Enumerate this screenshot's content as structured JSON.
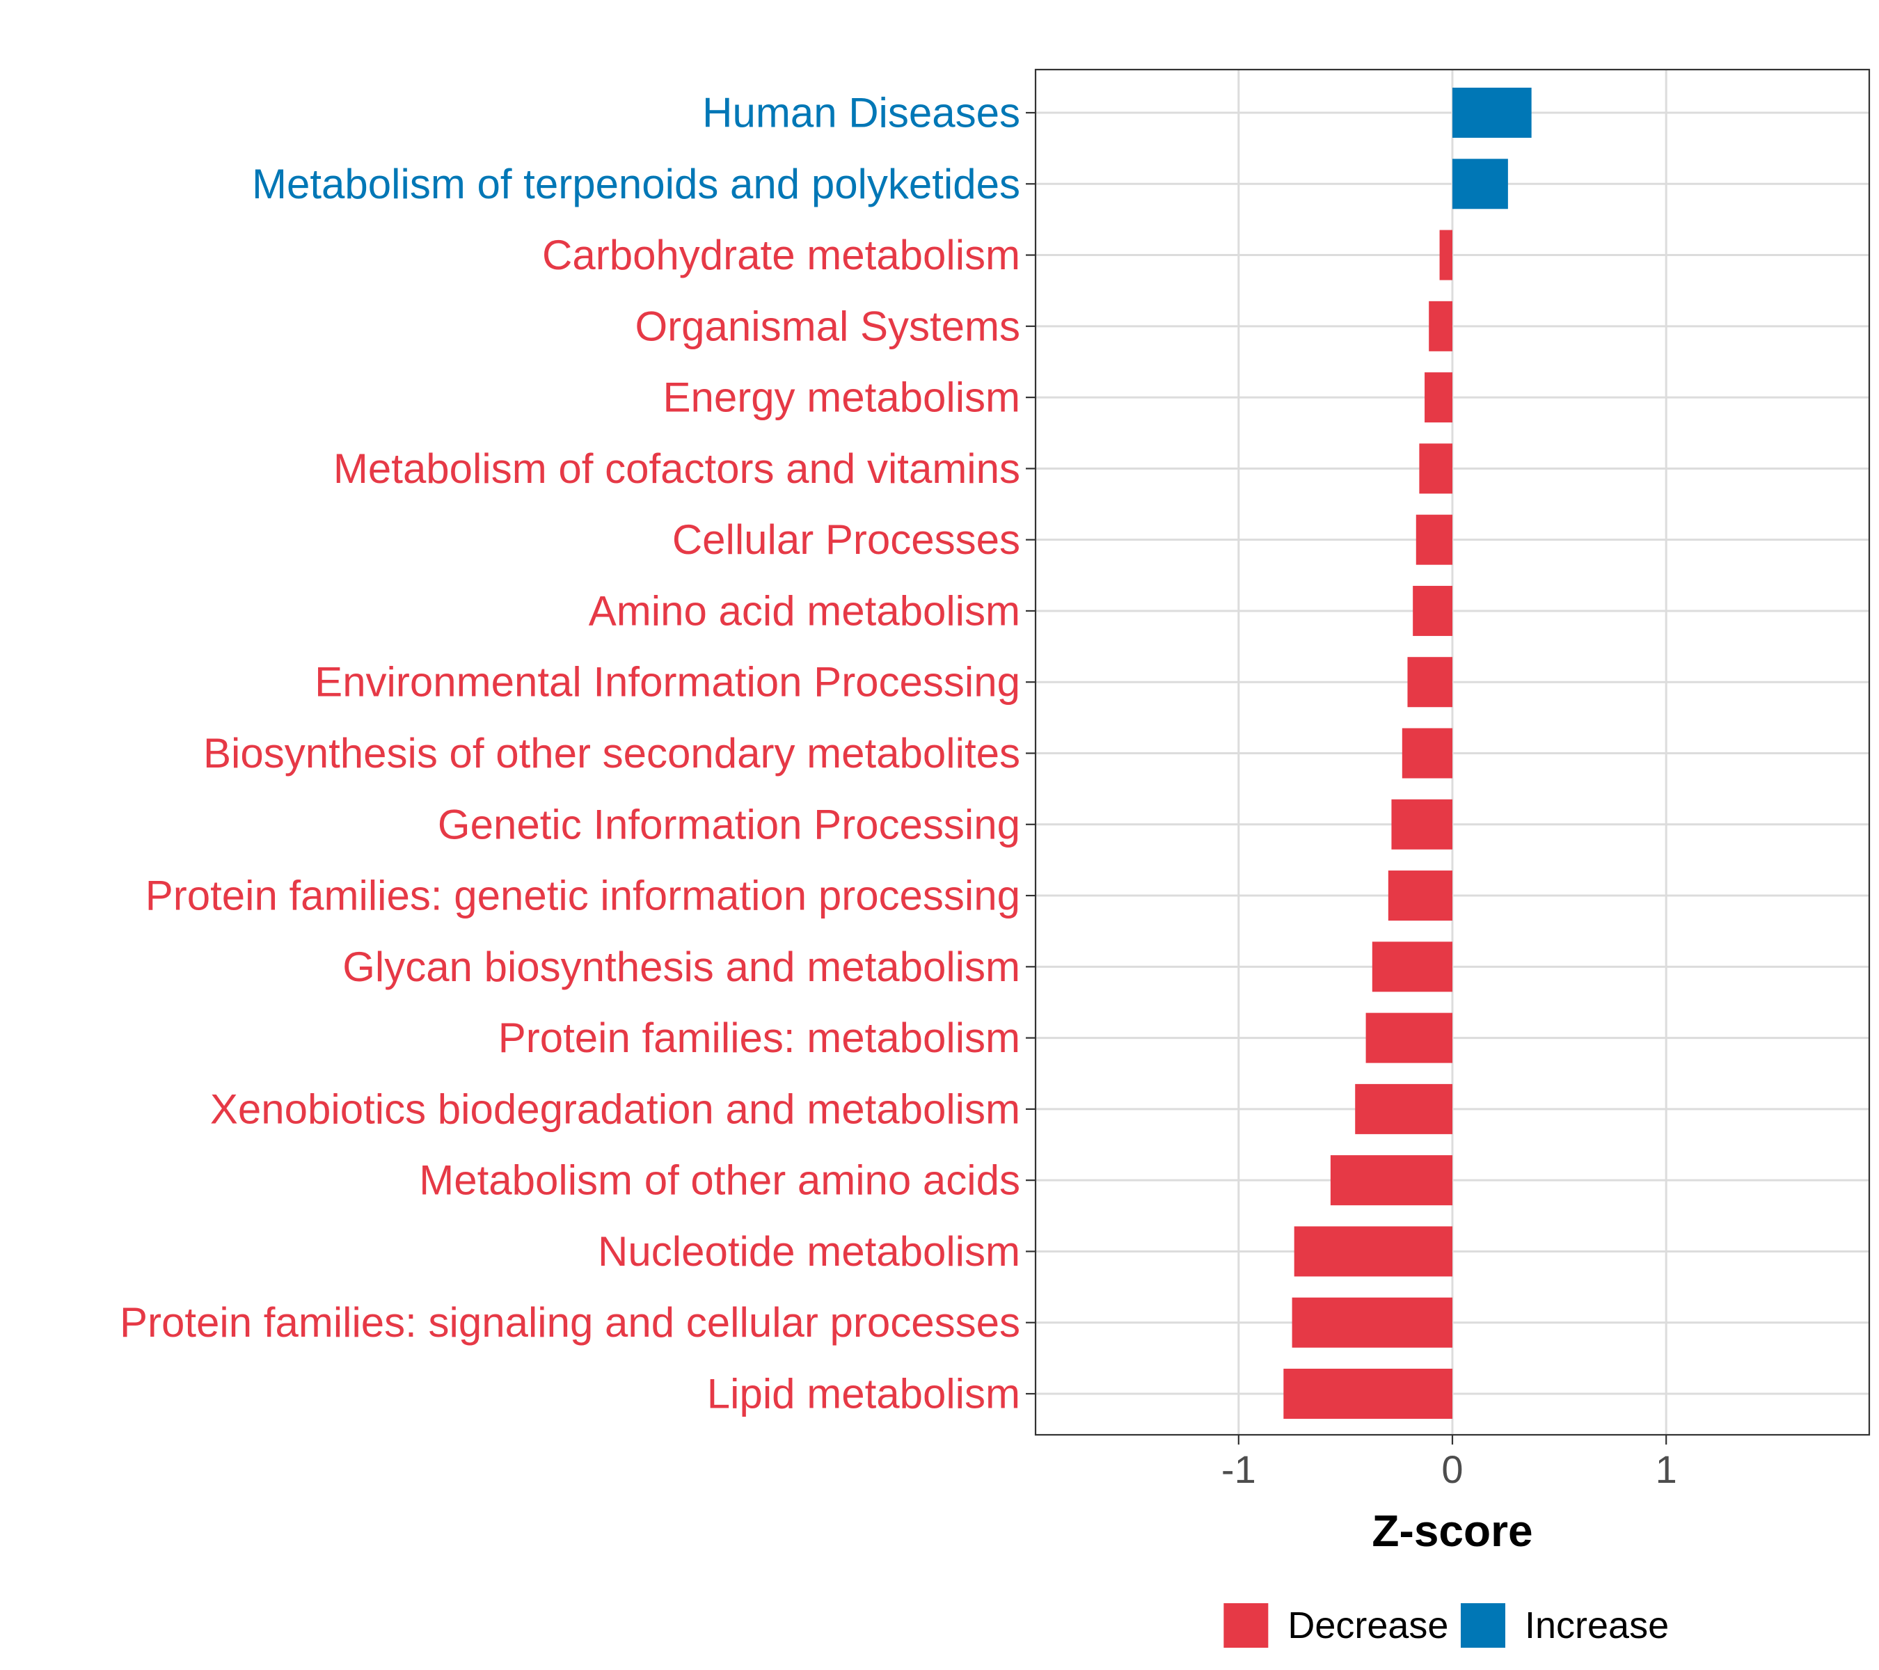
{
  "chart_data": {
    "type": "bar",
    "orientation": "horizontal",
    "title": "",
    "xlabel": "Z-score",
    "ylabel": "",
    "xlim": [
      -1.95,
      1.95
    ],
    "xticks": [
      -1,
      0,
      1
    ],
    "xtick_labels": [
      "-1",
      "0",
      "1"
    ],
    "grid": true,
    "legend_position": "bottom",
    "legend": [
      {
        "name": "Decrease",
        "color": "#E63946"
      },
      {
        "name": "Increase",
        "color": "#0077B6"
      }
    ],
    "categories": [
      "Human Diseases",
      "Metabolism of terpenoids and polyketides",
      "Carbohydrate metabolism",
      "Organismal Systems",
      "Energy metabolism",
      "Metabolism of cofactors and vitamins",
      "Cellular Processes",
      "Amino acid metabolism",
      "Environmental Information Processing",
      "Biosynthesis of other secondary metabolites",
      "Genetic Information Processing",
      "Protein families: genetic information processing",
      "Glycan biosynthesis and metabolism",
      "Protein families: metabolism",
      "Xenobiotics biodegradation and metabolism",
      "Metabolism of other amino acids",
      "Nucleotide metabolism",
      "Protein families: signaling and cellular processes",
      "Lipid metabolism"
    ],
    "values": [
      0.37,
      0.26,
      -0.06,
      -0.11,
      -0.13,
      -0.155,
      -0.17,
      -0.185,
      -0.21,
      -0.235,
      -0.285,
      -0.3,
      -0.375,
      -0.405,
      -0.455,
      -0.57,
      -0.74,
      -0.75,
      -0.79
    ],
    "groups": [
      "Increase",
      "Increase",
      "Decrease",
      "Decrease",
      "Decrease",
      "Decrease",
      "Decrease",
      "Decrease",
      "Decrease",
      "Decrease",
      "Decrease",
      "Decrease",
      "Decrease",
      "Decrease",
      "Decrease",
      "Decrease",
      "Decrease",
      "Decrease",
      "Decrease"
    ]
  }
}
